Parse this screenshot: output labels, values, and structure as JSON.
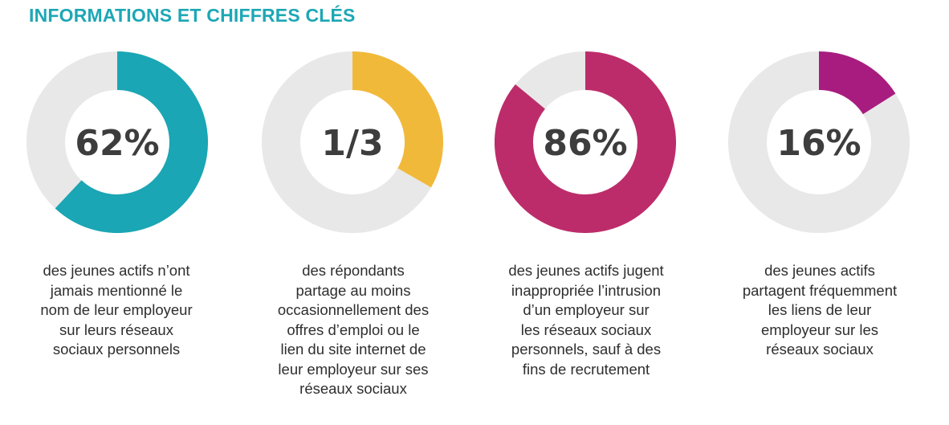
{
  "page": {
    "title": "INFORMATIONS ET CHIFFRES CLÉS",
    "title_color": "#1da7b5",
    "track_color": "#e8e8e8",
    "value_text_color": "#3d3d3d"
  },
  "chart_data": [
    {
      "type": "pie",
      "value_label": "62%",
      "values": [
        62,
        38
      ],
      "color": "#1aa6b4",
      "caption": [
        "des jeunes actifs n’ont",
        "jamais mentionné le",
        "nom de leur employeur",
        "sur leurs réseaux",
        "sociaux personnels"
      ]
    },
    {
      "type": "pie",
      "value_label": "1/3",
      "values": [
        33.3,
        66.7
      ],
      "color": "#f1b93a",
      "caption": [
        "des répondants",
        "partage au moins",
        "occasionnellement des",
        "offres d’emploi ou le",
        "lien du site internet de",
        "leur employeur sur ses",
        "réseaux sociaux"
      ]
    },
    {
      "type": "pie",
      "value_label": "86%",
      "values": [
        86,
        14
      ],
      "color": "#bd2c6a",
      "caption": [
        "des jeunes actifs jugent",
        "inappropriée l’intrusion",
        "d’un employeur sur",
        "les réseaux sociaux",
        "personnels, sauf à des",
        "fins de recrutement"
      ]
    },
    {
      "type": "pie",
      "value_label": "16%",
      "values": [
        16,
        84
      ],
      "color": "#a81c80",
      "caption": [
        "des jeunes actifs",
        "partagent fréquemment",
        "les liens de leur",
        "employeur sur les",
        "réseaux sociaux"
      ]
    }
  ]
}
